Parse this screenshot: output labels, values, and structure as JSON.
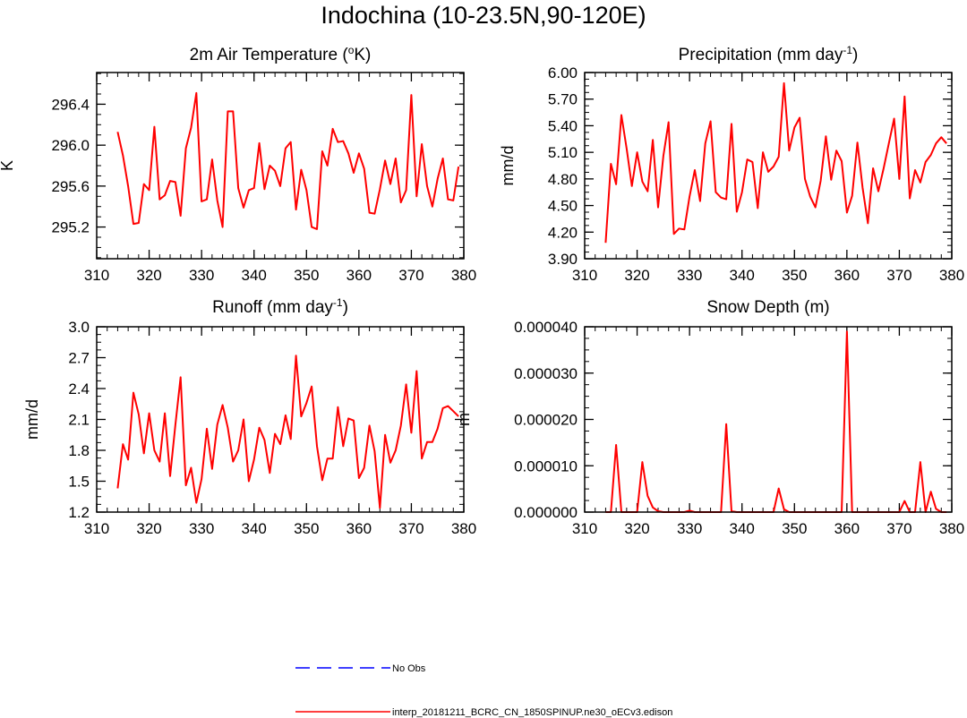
{
  "figure": {
    "title": "Indochina (10-23.5N,90-120E)"
  },
  "colors": {
    "model_line": "#ff0000",
    "obs_line": "#0000ff",
    "axis": "#000000"
  },
  "legend": [
    {
      "label": "No Obs",
      "style": "dashed",
      "color": "#0000ff"
    },
    {
      "label": "interp_20181211_BCRC_CN_1850SPINUP.ne30_oECv3.edison",
      "style": "solid",
      "color": "#ff0000"
    }
  ],
  "chart_data": [
    {
      "type": "line",
      "title": "2m Air Temperature (",
      "title_sup": "o",
      "title_after": "K)",
      "xlabel": "",
      "ylabel": "K",
      "xlim": [
        310,
        380
      ],
      "ylim": [
        294.89,
        296.71
      ],
      "xticks": [
        310,
        320,
        330,
        340,
        350,
        360,
        370,
        380
      ],
      "xtick_labels": [
        "310",
        "320",
        "330",
        "340",
        "350",
        "360",
        "370",
        "380"
      ],
      "yticks": [
        295.2,
        295.6,
        296.0,
        296.4
      ],
      "ytick_labels": [
        "295.2",
        "295.6",
        "296.0",
        "296.4"
      ],
      "series": [
        {
          "x": [
            314,
            315,
            316,
            317,
            318,
            319,
            320,
            321,
            322,
            323,
            324,
            325,
            326,
            327,
            328,
            329,
            330,
            331,
            332,
            333,
            334,
            335,
            336,
            337,
            338,
            339,
            340,
            341,
            342,
            343,
            344,
            345,
            346,
            347,
            348,
            349,
            350,
            351,
            352,
            353,
            354,
            355,
            356,
            357,
            358,
            359,
            360,
            361,
            362,
            363,
            364,
            365,
            366,
            367,
            368,
            369,
            370,
            371,
            372,
            373,
            374,
            375,
            376,
            377,
            378,
            379
          ],
          "values": [
            296.13,
            295.9,
            295.6,
            295.23,
            295.24,
            295.62,
            295.56,
            296.18,
            295.47,
            295.51,
            295.65,
            295.64,
            295.31,
            295.97,
            296.17,
            296.51,
            295.45,
            295.47,
            295.86,
            295.46,
            295.2,
            296.33,
            296.33,
            295.58,
            295.39,
            295.56,
            295.58,
            296.02,
            295.57,
            295.8,
            295.75,
            295.6,
            295.97,
            296.03,
            295.37,
            295.76,
            295.56,
            295.2,
            295.18,
            295.94,
            295.8,
            296.16,
            296.03,
            296.04,
            295.92,
            295.73,
            295.92,
            295.77,
            295.34,
            295.33,
            295.57,
            295.85,
            295.62,
            295.87,
            295.44,
            295.56,
            296.49,
            295.5,
            296.01,
            295.6,
            295.4,
            295.67,
            295.87,
            295.47,
            295.46,
            295.79
          ]
        }
      ]
    },
    {
      "type": "line",
      "title": "Precipitation (mm day",
      "title_sup": "-1",
      "title_after": ")",
      "xlabel": "",
      "ylabel": "mm/d",
      "xlim": [
        310,
        380
      ],
      "ylim": [
        3.9,
        6.0
      ],
      "xticks": [
        310,
        320,
        330,
        340,
        350,
        360,
        370,
        380
      ],
      "xtick_labels": [
        "310",
        "320",
        "330",
        "340",
        "350",
        "360",
        "370",
        "380"
      ],
      "yticks": [
        3.9,
        4.2,
        4.5,
        4.8,
        5.1,
        5.4,
        5.7,
        6.0
      ],
      "ytick_labels": [
        "3.90",
        "4.20",
        "4.50",
        "4.80",
        "5.10",
        "5.40",
        "5.70",
        "6.00"
      ],
      "series": [
        {
          "x": [
            314,
            315,
            316,
            317,
            318,
            319,
            320,
            321,
            322,
            323,
            324,
            325,
            326,
            327,
            328,
            329,
            330,
            331,
            332,
            333,
            334,
            335,
            336,
            337,
            338,
            339,
            340,
            341,
            342,
            343,
            344,
            345,
            346,
            347,
            348,
            349,
            350,
            351,
            352,
            353,
            354,
            355,
            356,
            357,
            358,
            359,
            360,
            361,
            362,
            363,
            364,
            365,
            366,
            367,
            368,
            369,
            370,
            371,
            372,
            373,
            374,
            375,
            376,
            377,
            378,
            379
          ],
          "values": [
            4.08,
            4.97,
            4.74,
            5.52,
            5.14,
            4.72,
            5.1,
            4.77,
            4.66,
            5.24,
            4.48,
            5.06,
            5.44,
            4.18,
            4.24,
            4.23,
            4.6,
            4.9,
            4.55,
            5.2,
            5.45,
            4.65,
            4.59,
            4.57,
            5.42,
            4.43,
            4.65,
            5.02,
            4.99,
            4.47,
            5.1,
            4.88,
            4.94,
            5.05,
            5.88,
            5.12,
            5.38,
            5.49,
            4.8,
            4.6,
            4.48,
            4.78,
            5.28,
            4.79,
            5.12,
            5.0,
            4.42,
            4.61,
            5.21,
            4.7,
            4.3,
            4.92,
            4.66,
            4.92,
            5.2,
            5.48,
            4.8,
            5.73,
            4.58,
            4.9,
            4.76,
            4.99,
            5.07,
            5.2,
            5.27,
            5.2
          ]
        }
      ]
    },
    {
      "type": "line",
      "title": "Runoff (mm day",
      "title_sup": "-1",
      "title_after": ")",
      "xlabel": "",
      "ylabel": "mm/d",
      "xlim": [
        310,
        380
      ],
      "ylim": [
        1.2,
        3.0
      ],
      "xticks": [
        310,
        320,
        330,
        340,
        350,
        360,
        370,
        380
      ],
      "xtick_labels": [
        "310",
        "320",
        "330",
        "340",
        "350",
        "360",
        "370",
        "380"
      ],
      "yticks": [
        1.2,
        1.5,
        1.8,
        2.1,
        2.4,
        2.7,
        3.0
      ],
      "ytick_labels": [
        "1.2",
        "1.5",
        "1.8",
        "2.1",
        "2.4",
        "2.7",
        "3.0"
      ],
      "series": [
        {
          "x": [
            314,
            315,
            316,
            317,
            318,
            319,
            320,
            321,
            322,
            323,
            324,
            325,
            326,
            327,
            328,
            329,
            330,
            331,
            332,
            333,
            334,
            335,
            336,
            337,
            338,
            339,
            340,
            341,
            342,
            343,
            344,
            345,
            346,
            347,
            348,
            349,
            350,
            351,
            352,
            353,
            354,
            355,
            356,
            357,
            358,
            359,
            360,
            361,
            362,
            363,
            364,
            365,
            366,
            367,
            368,
            369,
            370,
            371,
            372,
            373,
            374,
            375,
            376,
            377,
            378,
            379
          ],
          "values": [
            1.43,
            1.86,
            1.71,
            2.36,
            2.15,
            1.77,
            2.16,
            1.8,
            1.69,
            2.16,
            1.55,
            2.05,
            2.51,
            1.46,
            1.63,
            1.29,
            1.52,
            2.01,
            1.62,
            2.05,
            2.24,
            2.02,
            1.69,
            1.8,
            2.1,
            1.5,
            1.71,
            2.02,
            1.9,
            1.58,
            1.96,
            1.86,
            2.14,
            1.91,
            2.72,
            2.13,
            2.26,
            2.42,
            1.84,
            1.51,
            1.72,
            1.72,
            2.22,
            1.84,
            2.11,
            2.09,
            1.53,
            1.63,
            2.04,
            1.79,
            1.24,
            1.95,
            1.68,
            1.8,
            2.04,
            2.44,
            1.97,
            2.57,
            1.72,
            1.88,
            1.88,
            2.01,
            2.21,
            2.23,
            2.18,
            2.13
          ]
        }
      ]
    },
    {
      "type": "line",
      "title": "Snow Depth (m)",
      "title_sup": "",
      "title_after": "",
      "xlabel": "",
      "ylabel": "m",
      "xlim": [
        310,
        380
      ],
      "ylim": [
        0,
        4e-05
      ],
      "xticks": [
        310,
        320,
        330,
        340,
        350,
        360,
        370,
        380
      ],
      "xtick_labels": [
        "310",
        "320",
        "330",
        "340",
        "350",
        "360",
        "370",
        "380"
      ],
      "yticks": [
        0,
        1e-05,
        2e-05,
        3e-05,
        4e-05
      ],
      "ytick_labels": [
        "0.000000",
        "0.000010",
        "0.000020",
        "0.000030",
        "0.000040"
      ],
      "series": [
        {
          "x": [
            314,
            315,
            316,
            317,
            318,
            319,
            320,
            321,
            322,
            323,
            324,
            325,
            326,
            327,
            328,
            329,
            330,
            331,
            332,
            333,
            334,
            335,
            336,
            337,
            338,
            339,
            340,
            341,
            342,
            343,
            344,
            345,
            346,
            347,
            348,
            349,
            350,
            351,
            352,
            353,
            354,
            355,
            356,
            357,
            358,
            359,
            360,
            361,
            362,
            363,
            364,
            365,
            366,
            367,
            368,
            369,
            370,
            371,
            372,
            373,
            374,
            375,
            376,
            377,
            378,
            379
          ],
          "values": [
            0,
            0,
            1.45e-05,
            0,
            0,
            0,
            0,
            1.08e-05,
            3.5e-06,
            1e-06,
            2e-07,
            0,
            0,
            0,
            0,
            0,
            3e-07,
            0,
            0,
            0,
            0,
            0,
            0,
            1.9e-05,
            2e-07,
            0,
            0,
            0,
            0,
            0,
            0,
            0,
            0,
            5.1e-06,
            6e-07,
            0,
            0,
            0,
            0,
            0,
            0,
            0,
            0,
            0,
            0,
            0,
            3.9e-05,
            0,
            0,
            0,
            0,
            0,
            0,
            0,
            0,
            0,
            0,
            2.4e-06,
            0,
            0,
            1.08e-05,
            0,
            4.4e-06,
            7e-07,
            0,
            0
          ]
        }
      ]
    }
  ]
}
